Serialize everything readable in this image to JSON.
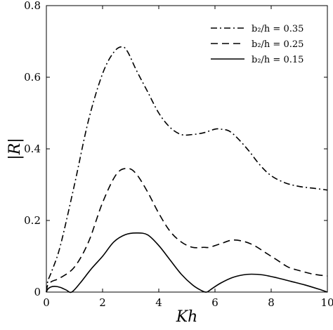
{
  "chart_data": {
    "type": "line",
    "title": "",
    "xlabel": "Kh",
    "ylabel": "|R|",
    "xlim": [
      0,
      10
    ],
    "ylim": [
      0,
      0.8
    ],
    "xticks": [
      0,
      2,
      4,
      6,
      8,
      10
    ],
    "yticks": [
      0,
      0.2,
      0.4,
      0.6,
      0.8
    ],
    "xtick_labels": [
      "0",
      "2",
      "4",
      "6",
      "8",
      "10"
    ],
    "ytick_labels": [
      "0",
      "0.2",
      "0.4",
      "0.6",
      "0.8"
    ],
    "grid": false,
    "legend_position": "top-right",
    "series": [
      {
        "name": "b₂/h = 0.35",
        "line_style": "dash-dot",
        "x": [
          0,
          0.05,
          0.2,
          0.5,
          1.0,
          1.5,
          2.0,
          2.4,
          2.7,
          2.9,
          3.2,
          3.6,
          4.0,
          4.4,
          4.8,
          5.2,
          5.6,
          6.0,
          6.2,
          6.5,
          6.8,
          7.2,
          7.6,
          8.0,
          8.5,
          9.0,
          9.5,
          10.0
        ],
        "y": [
          0,
          0.03,
          0.06,
          0.13,
          0.3,
          0.48,
          0.61,
          0.67,
          0.685,
          0.67,
          0.62,
          0.56,
          0.5,
          0.46,
          0.44,
          0.44,
          0.445,
          0.455,
          0.455,
          0.45,
          0.43,
          0.395,
          0.355,
          0.325,
          0.305,
          0.295,
          0.29,
          0.285
        ]
      },
      {
        "name": "b₂/h = 0.25",
        "line_style": "dashed",
        "x": [
          0,
          0.05,
          0.2,
          0.5,
          1.0,
          1.5,
          2.0,
          2.5,
          2.9,
          3.2,
          3.6,
          4.0,
          4.4,
          4.8,
          5.2,
          5.6,
          5.8,
          6.2,
          6.6,
          7.0,
          7.4,
          7.8,
          8.2,
          8.6,
          9.0,
          9.5,
          10.0
        ],
        "y": [
          0,
          0.02,
          0.03,
          0.04,
          0.07,
          0.14,
          0.25,
          0.33,
          0.345,
          0.33,
          0.28,
          0.22,
          0.17,
          0.14,
          0.125,
          0.125,
          0.125,
          0.135,
          0.145,
          0.142,
          0.13,
          0.11,
          0.09,
          0.07,
          0.06,
          0.05,
          0.045
        ]
      },
      {
        "name": "b₂/h = 0.15",
        "line_style": "solid",
        "x": [
          0,
          0.05,
          0.15,
          0.3,
          0.5,
          0.7,
          0.9,
          1.2,
          1.6,
          2.0,
          2.4,
          2.8,
          3.2,
          3.6,
          4.0,
          4.4,
          4.8,
          5.2,
          5.5,
          5.7,
          5.9,
          6.2,
          6.6,
          7.0,
          7.3,
          7.7,
          8.2,
          8.7,
          9.2,
          9.7,
          10.0
        ],
        "y": [
          0,
          0.008,
          0.014,
          0.016,
          0.013,
          0.006,
          0,
          0.025,
          0.065,
          0.1,
          0.14,
          0.16,
          0.165,
          0.16,
          0.13,
          0.09,
          0.05,
          0.02,
          0.005,
          0,
          0.01,
          0.025,
          0.04,
          0.048,
          0.05,
          0.048,
          0.04,
          0.03,
          0.02,
          0.008,
          0
        ]
      }
    ]
  }
}
